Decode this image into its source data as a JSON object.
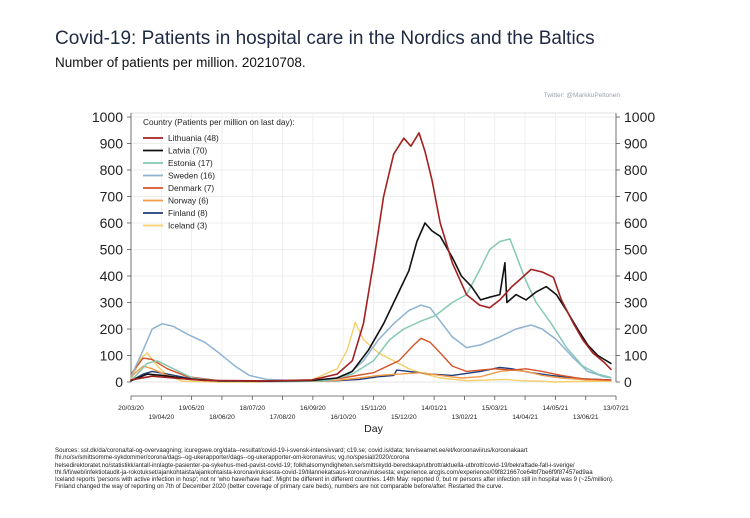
{
  "title": "Covid-19: Patients in hospital care in the Nordics and the Baltics",
  "subtitle": "Number of patients per million. 20210708.",
  "credit": "Twitter: @MarkkuPeltonen",
  "sources": [
    "Sources: sst.dk/da/corona/tal-og-overvaagning; icuregswe.org/data--resultat/covid-19-i-svensk-intensivvard; c19.se; covid.is/data;  terviseamet.ee/et/koroonaviirus/koroonakaart",
    "fhi.no/sv/smittsomme-sykdommer/corona/dags--og-ukerapporter/dags--og-ukerapporter-om-koronavirus; vg.no/spesial/2020/corona",
    "helsedirektoratet.no/statistikk/antall-innlagte-pasienter-pa-sykehus-med-pavist-covid-19; folkhalsomyndigheten.se/smittskydd-beredskap/utbrott/aktuella-utbrott/covid-19/bekraftade-fall-i-sverige/",
    "thl.fi/fi/web/infektiotaudit-ja-rokotukset/ajankohtaista/ajankohtaista-koronaviruksesta-covid-19/tilannekatsaus-koronaviruksesta; experience.arcgis.com/experience/09f821667ce64bf7be6f9f87457ed9aa",
    "Iceland reports 'persons with active infection in hosp'; not nr 'who have/have had'. Might be different in different countries. 14th May: reported 0; but nr persons after infection still in hospital was 9 (~25/million).",
    "Finland changed the way of reporting on 7th of December 2020 (better coverage of primary care beds), numbers are not comparable before/after. Restarted the curve."
  ],
  "chart_data": {
    "type": "line",
    "title": "Covid-19: Patients in hospital care in the Nordics and the Baltics",
    "subtitle": "Number of patients per million. 20210708.",
    "xlabel": "Day",
    "ylabel": "",
    "ylim": [
      0,
      1000
    ],
    "yticks": [
      0,
      100,
      200,
      300,
      400,
      500,
      600,
      700,
      800,
      900,
      1000
    ],
    "xlim": [
      "2020-03-20",
      "2021-07-13"
    ],
    "xticks_top_row": [
      "20/03/20",
      "19/05/20",
      "18/07/20",
      "16/09/20",
      "15/11/20",
      "14/01/21",
      "15/03/21",
      "14/05/21",
      "13/07/21"
    ],
    "xticks_bottom_row": [
      "19/04/20",
      "18/06/20",
      "17/08/20",
      "16/10/20",
      "15/12/20",
      "13/02/21",
      "14/04/21",
      "13/06/21"
    ],
    "grid": true,
    "legend_title": "Country (Patients per million on last day):",
    "legend_position": "top-left",
    "series": [
      {
        "name": "Lithuania (48)",
        "color": "#a32020",
        "width": 1.6,
        "points": [
          [
            "2020-03-20",
            8
          ],
          [
            "2020-04-10",
            22
          ],
          [
            "2020-05-01",
            15
          ],
          [
            "2020-06-01",
            6
          ],
          [
            "2020-08-01",
            4
          ],
          [
            "2020-09-15",
            8
          ],
          [
            "2020-10-10",
            30
          ],
          [
            "2020-10-25",
            80
          ],
          [
            "2020-11-05",
            220
          ],
          [
            "2020-11-15",
            450
          ],
          [
            "2020-11-25",
            700
          ],
          [
            "2020-12-05",
            860
          ],
          [
            "2020-12-15",
            920
          ],
          [
            "2020-12-22",
            890
          ],
          [
            "2020-12-30",
            940
          ],
          [
            "2021-01-05",
            870
          ],
          [
            "2021-01-12",
            760
          ],
          [
            "2021-01-20",
            600
          ],
          [
            "2021-02-01",
            450
          ],
          [
            "2021-02-15",
            330
          ],
          [
            "2021-02-28",
            290
          ],
          [
            "2021-03-10",
            280
          ],
          [
            "2021-03-20",
            310
          ],
          [
            "2021-04-01",
            360
          ],
          [
            "2021-04-10",
            390
          ],
          [
            "2021-04-20",
            425
          ],
          [
            "2021-05-01",
            415
          ],
          [
            "2021-05-12",
            395
          ],
          [
            "2021-05-20",
            310
          ],
          [
            "2021-06-01",
            220
          ],
          [
            "2021-06-10",
            160
          ],
          [
            "2021-06-20",
            110
          ],
          [
            "2021-07-01",
            75
          ],
          [
            "2021-07-08",
            48
          ]
        ]
      },
      {
        "name": "Latvia (70)",
        "color": "#111111",
        "width": 1.6,
        "points": [
          [
            "2020-03-20",
            5
          ],
          [
            "2020-04-05",
            30
          ],
          [
            "2020-04-20",
            25
          ],
          [
            "2020-05-15",
            12
          ],
          [
            "2020-06-15",
            4
          ],
          [
            "2020-08-01",
            3
          ],
          [
            "2020-09-15",
            6
          ],
          [
            "2020-10-10",
            15
          ],
          [
            "2020-10-25",
            40
          ],
          [
            "2020-11-10",
            120
          ],
          [
            "2020-11-25",
            220
          ],
          [
            "2020-12-10",
            340
          ],
          [
            "2020-12-20",
            420
          ],
          [
            "2020-12-28",
            530
          ],
          [
            "2021-01-05",
            600
          ],
          [
            "2021-01-12",
            570
          ],
          [
            "2021-01-20",
            550
          ],
          [
            "2021-02-01",
            470
          ],
          [
            "2021-02-10",
            400
          ],
          [
            "2021-02-20",
            360
          ],
          [
            "2021-03-01",
            310
          ],
          [
            "2021-03-10",
            320
          ],
          [
            "2021-03-20",
            330
          ],
          [
            "2021-03-25",
            450
          ],
          [
            "2021-03-27",
            300
          ],
          [
            "2021-04-05",
            330
          ],
          [
            "2021-04-15",
            310
          ],
          [
            "2021-04-25",
            340
          ],
          [
            "2021-05-05",
            360
          ],
          [
            "2021-05-15",
            330
          ],
          [
            "2021-05-25",
            270
          ],
          [
            "2021-06-05",
            200
          ],
          [
            "2021-06-15",
            140
          ],
          [
            "2021-06-25",
            100
          ],
          [
            "2021-07-08",
            70
          ]
        ]
      },
      {
        "name": "Estonia (17)",
        "color": "#86c9b5",
        "width": 1.5,
        "points": [
          [
            "2020-03-20",
            5
          ],
          [
            "2020-04-05",
            70
          ],
          [
            "2020-04-15",
            80
          ],
          [
            "2020-05-01",
            50
          ],
          [
            "2020-05-20",
            15
          ],
          [
            "2020-06-15",
            3
          ],
          [
            "2020-08-15",
            2
          ],
          [
            "2020-10-01",
            5
          ],
          [
            "2020-10-25",
            30
          ],
          [
            "2020-11-15",
            80
          ],
          [
            "2020-12-01",
            160
          ],
          [
            "2020-12-15",
            200
          ],
          [
            "2021-01-01",
            230
          ],
          [
            "2021-01-15",
            250
          ],
          [
            "2021-02-01",
            300
          ],
          [
            "2021-02-15",
            330
          ],
          [
            "2021-03-01",
            430
          ],
          [
            "2021-03-10",
            500
          ],
          [
            "2021-03-20",
            530
          ],
          [
            "2021-03-30",
            540
          ],
          [
            "2021-04-05",
            480
          ],
          [
            "2021-04-15",
            380
          ],
          [
            "2021-04-25",
            300
          ],
          [
            "2021-05-10",
            220
          ],
          [
            "2021-05-25",
            130
          ],
          [
            "2021-06-10",
            60
          ],
          [
            "2021-06-25",
            30
          ],
          [
            "2021-07-08",
            17
          ]
        ]
      },
      {
        "name": "Sweden (16)",
        "color": "#8fb3d3",
        "width": 1.5,
        "points": [
          [
            "2020-03-20",
            20
          ],
          [
            "2020-04-01",
            120
          ],
          [
            "2020-04-10",
            200
          ],
          [
            "2020-04-20",
            220
          ],
          [
            "2020-05-01",
            210
          ],
          [
            "2020-05-15",
            180
          ],
          [
            "2020-06-01",
            150
          ],
          [
            "2020-06-15",
            110
          ],
          [
            "2020-07-01",
            60
          ],
          [
            "2020-07-15",
            25
          ],
          [
            "2020-08-01",
            10
          ],
          [
            "2020-09-01",
            5
          ],
          [
            "2020-10-01",
            8
          ],
          [
            "2020-10-20",
            25
          ],
          [
            "2020-11-05",
            80
          ],
          [
            "2020-11-20",
            160
          ],
          [
            "2020-12-05",
            220
          ],
          [
            "2020-12-20",
            270
          ],
          [
            "2021-01-01",
            290
          ],
          [
            "2021-01-10",
            280
          ],
          [
            "2021-01-20",
            230
          ],
          [
            "2021-02-01",
            170
          ],
          [
            "2021-02-15",
            130
          ],
          [
            "2021-03-01",
            140
          ],
          [
            "2021-03-20",
            170
          ],
          [
            "2021-04-05",
            200
          ],
          [
            "2021-04-20",
            215
          ],
          [
            "2021-05-01",
            200
          ],
          [
            "2021-05-15",
            160
          ],
          [
            "2021-06-01",
            90
          ],
          [
            "2021-06-15",
            40
          ],
          [
            "2021-07-01",
            20
          ],
          [
            "2021-07-08",
            16
          ]
        ]
      },
      {
        "name": "Denmark (7)",
        "color": "#d4542b",
        "width": 1.4,
        "points": [
          [
            "2020-03-20",
            30
          ],
          [
            "2020-04-01",
            90
          ],
          [
            "2020-04-10",
            85
          ],
          [
            "2020-04-25",
            50
          ],
          [
            "2020-05-15",
            20
          ],
          [
            "2020-06-15",
            5
          ],
          [
            "2020-08-01",
            3
          ],
          [
            "2020-09-15",
            6
          ],
          [
            "2020-10-15",
            15
          ],
          [
            "2020-11-15",
            35
          ],
          [
            "2020-12-10",
            80
          ],
          [
            "2020-12-25",
            140
          ],
          [
            "2021-01-01",
            165
          ],
          [
            "2021-01-10",
            150
          ],
          [
            "2021-01-20",
            110
          ],
          [
            "2021-02-01",
            60
          ],
          [
            "2021-02-15",
            40
          ],
          [
            "2021-03-01",
            45
          ],
          [
            "2021-03-15",
            50
          ],
          [
            "2021-04-01",
            45
          ],
          [
            "2021-04-15",
            50
          ],
          [
            "2021-05-01",
            40
          ],
          [
            "2021-05-20",
            25
          ],
          [
            "2021-06-10",
            12
          ],
          [
            "2021-07-08",
            7
          ]
        ]
      },
      {
        "name": "Norway (6)",
        "color": "#f39c4a",
        "width": 1.4,
        "points": [
          [
            "2020-03-20",
            20
          ],
          [
            "2020-04-01",
            60
          ],
          [
            "2020-04-10",
            50
          ],
          [
            "2020-04-25",
            25
          ],
          [
            "2020-05-15",
            10
          ],
          [
            "2020-06-15",
            3
          ],
          [
            "2020-08-01",
            2
          ],
          [
            "2020-10-01",
            3
          ],
          [
            "2020-11-01",
            15
          ],
          [
            "2020-11-20",
            25
          ],
          [
            "2020-12-10",
            30
          ],
          [
            "2021-01-01",
            35
          ],
          [
            "2021-01-20",
            25
          ],
          [
            "2021-02-10",
            15
          ],
          [
            "2021-03-01",
            20
          ],
          [
            "2021-03-20",
            40
          ],
          [
            "2021-04-01",
            45
          ],
          [
            "2021-04-15",
            40
          ],
          [
            "2021-05-01",
            25
          ],
          [
            "2021-05-20",
            15
          ],
          [
            "2021-06-15",
            8
          ],
          [
            "2021-07-08",
            6
          ]
        ]
      },
      {
        "name": "Finland (8)",
        "color": "#1f3d7a",
        "width": 1.4,
        "points": [
          [
            "2020-03-20",
            5
          ],
          [
            "2020-04-01",
            30
          ],
          [
            "2020-04-10",
            40
          ],
          [
            "2020-04-25",
            30
          ],
          [
            "2020-05-15",
            15
          ],
          [
            "2020-06-15",
            4
          ],
          [
            "2020-08-01",
            2
          ],
          [
            "2020-10-01",
            3
          ],
          [
            "2020-11-01",
            10
          ],
          [
            "2020-11-20",
            20
          ],
          [
            "2020-12-05",
            25
          ],
          [
            "2020-12-08",
            45
          ],
          [
            "2020-12-20",
            40
          ],
          [
            "2021-01-10",
            30
          ],
          [
            "2021-02-01",
            25
          ],
          [
            "2021-03-01",
            40
          ],
          [
            "2021-03-20",
            55
          ],
          [
            "2021-04-01",
            50
          ],
          [
            "2021-04-20",
            35
          ],
          [
            "2021-05-10",
            25
          ],
          [
            "2021-06-10",
            12
          ],
          [
            "2021-07-08",
            8
          ]
        ]
      },
      {
        "name": "Iceland (3)",
        "color": "#f2cf6b",
        "width": 1.4,
        "points": [
          [
            "2020-03-20",
            10
          ],
          [
            "2020-03-30",
            90
          ],
          [
            "2020-04-05",
            110
          ],
          [
            "2020-04-15",
            60
          ],
          [
            "2020-04-25",
            25
          ],
          [
            "2020-05-10",
            3
          ],
          [
            "2020-06-15",
            0
          ],
          [
            "2020-07-25",
            0
          ],
          [
            "2020-08-05",
            5
          ],
          [
            "2020-09-15",
            8
          ],
          [
            "2020-10-10",
            50
          ],
          [
            "2020-10-20",
            120
          ],
          [
            "2020-10-28",
            225
          ],
          [
            "2020-11-05",
            160
          ],
          [
            "2020-11-20",
            110
          ],
          [
            "2020-12-05",
            80
          ],
          [
            "2020-12-20",
            50
          ],
          [
            "2021-01-05",
            30
          ],
          [
            "2021-01-20",
            15
          ],
          [
            "2021-02-15",
            5
          ],
          [
            "2021-03-25",
            10
          ],
          [
            "2021-04-10",
            5
          ],
          [
            "2021-05-01",
            3
          ],
          [
            "2021-05-14",
            0
          ],
          [
            "2021-06-01",
            2
          ],
          [
            "2021-07-08",
            3
          ]
        ]
      }
    ]
  }
}
